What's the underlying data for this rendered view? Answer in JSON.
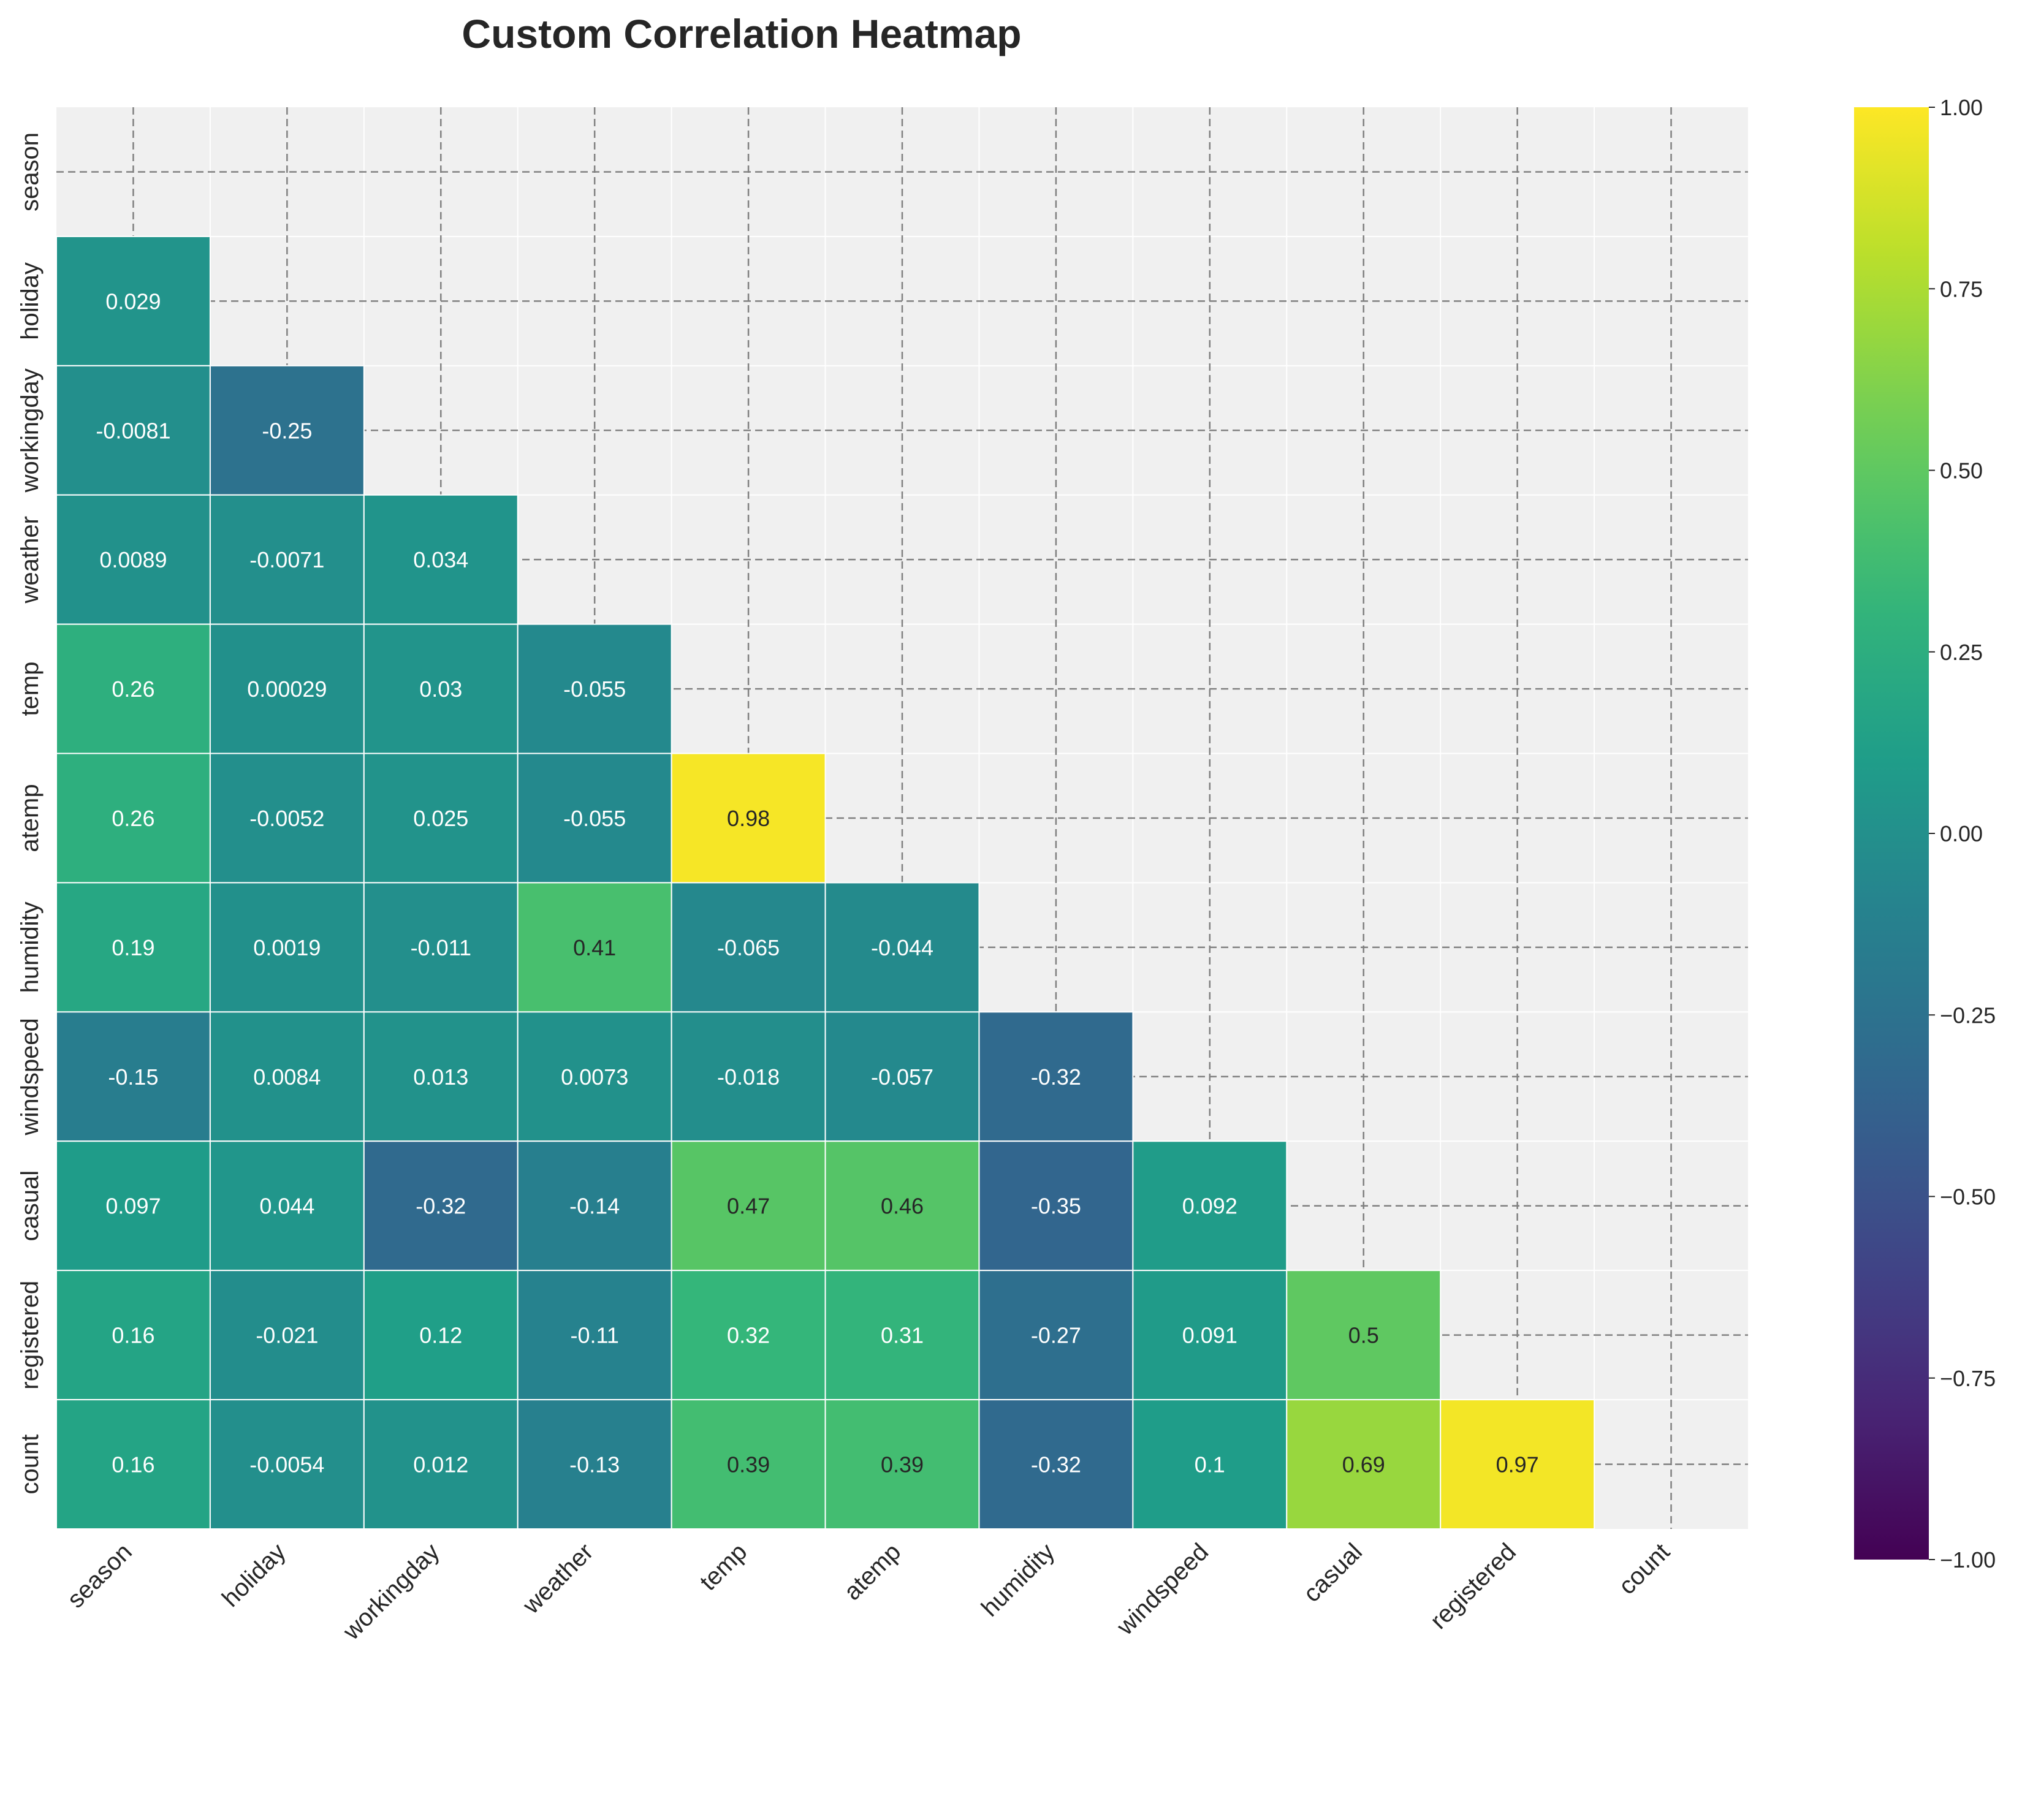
{
  "chart_data": {
    "type": "heatmap",
    "title": "Custom Correlation Heatmap",
    "xlabel": "",
    "ylabel": "",
    "labels": [
      "season",
      "holiday",
      "workingday",
      "weather",
      "temp",
      "atemp",
      "humidity",
      "windspeed",
      "casual",
      "registered",
      "count"
    ],
    "mask": "upper-triangle-including-diagonal",
    "matrix": [
      [
        null,
        null,
        null,
        null,
        null,
        null,
        null,
        null,
        null,
        null,
        null
      ],
      [
        0.029,
        null,
        null,
        null,
        null,
        null,
        null,
        null,
        null,
        null,
        null
      ],
      [
        -0.0081,
        -0.25,
        null,
        null,
        null,
        null,
        null,
        null,
        null,
        null,
        null
      ],
      [
        0.0089,
        -0.0071,
        0.034,
        null,
        null,
        null,
        null,
        null,
        null,
        null,
        null
      ],
      [
        0.26,
        0.00029,
        0.03,
        -0.055,
        null,
        null,
        null,
        null,
        null,
        null,
        null
      ],
      [
        0.26,
        -0.0052,
        0.025,
        -0.055,
        0.98,
        null,
        null,
        null,
        null,
        null,
        null
      ],
      [
        0.19,
        0.0019,
        -0.011,
        0.41,
        -0.065,
        -0.044,
        null,
        null,
        null,
        null,
        null
      ],
      [
        -0.15,
        0.0084,
        0.013,
        0.0073,
        -0.018,
        -0.057,
        -0.32,
        null,
        null,
        null,
        null
      ],
      [
        0.097,
        0.044,
        -0.32,
        -0.14,
        0.47,
        0.46,
        -0.35,
        0.092,
        null,
        null,
        null
      ],
      [
        0.16,
        -0.021,
        0.12,
        -0.11,
        0.32,
        0.31,
        -0.27,
        0.091,
        0.5,
        null,
        null
      ],
      [
        0.16,
        -0.0054,
        0.012,
        -0.13,
        0.39,
        0.39,
        -0.32,
        0.1,
        0.69,
        0.97,
        null
      ]
    ],
    "colormap": "viridis",
    "vmin": -1,
    "vmax": 1,
    "colorbar_ticks": [
      "1.00",
      "0.75",
      "0.50",
      "0.25",
      "0.00",
      "−0.25",
      "−0.50",
      "−0.75",
      "−1.00"
    ],
    "grid": true
  },
  "colors": {
    "background": "#f0f0f0",
    "grid_line": "#808080",
    "cell_border": "#ffffff",
    "dark_text": "#262626",
    "light_text": "#ffffff"
  }
}
